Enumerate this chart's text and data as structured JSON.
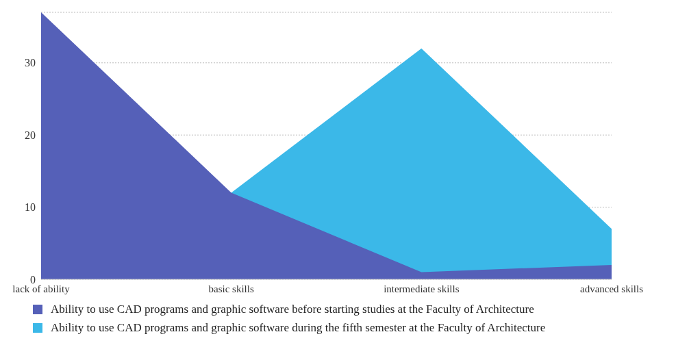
{
  "chart_data": {
    "type": "area",
    "categories": [
      "lack of ability",
      "basic skills",
      "intermediate skills",
      "advanced skills"
    ],
    "series": [
      {
        "name": "Ability to use CAD programs and graphic software before starting studies at the Faculty of Architecture",
        "color": "#5560b8",
        "values": [
          37,
          12,
          1,
          2
        ]
      },
      {
        "name": "Ability to use CAD programs and graphic software during the fifth semester at the Faculty of Architecture",
        "color": "#3bb8e8",
        "values": [
          null,
          12,
          32,
          7
        ]
      }
    ],
    "ylim": [
      0,
      37
    ],
    "yticks": [
      0,
      10,
      20,
      30
    ],
    "grid": "y",
    "legend": "bottom"
  }
}
